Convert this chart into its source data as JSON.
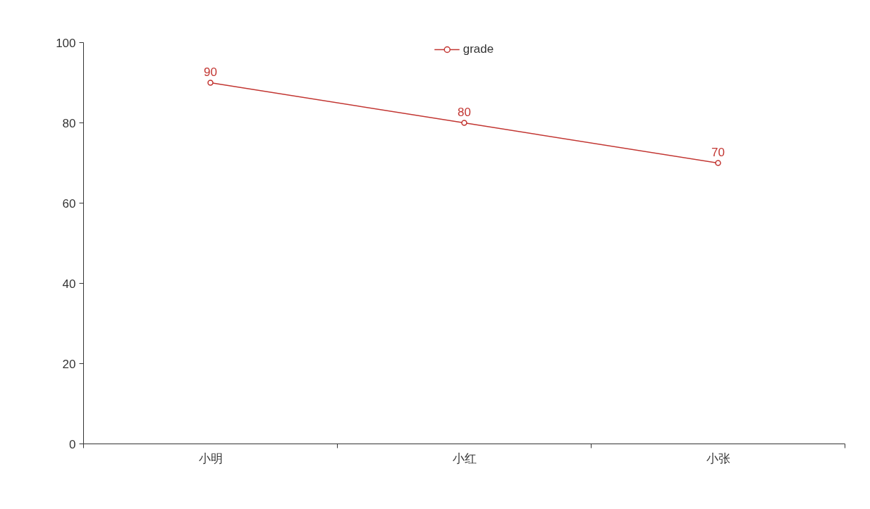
{
  "chart_data": {
    "type": "line",
    "categories": [
      "小明",
      "小红",
      "小张"
    ],
    "series": [
      {
        "name": "grade",
        "color": "#c23531",
        "values": [
          90,
          80,
          70
        ]
      }
    ],
    "ylim": [
      0,
      100
    ],
    "yticks": [
      0,
      20,
      40,
      60,
      80,
      100
    ],
    "grid": false,
    "legend": "top",
    "marker": "circle",
    "data_labels": true
  }
}
